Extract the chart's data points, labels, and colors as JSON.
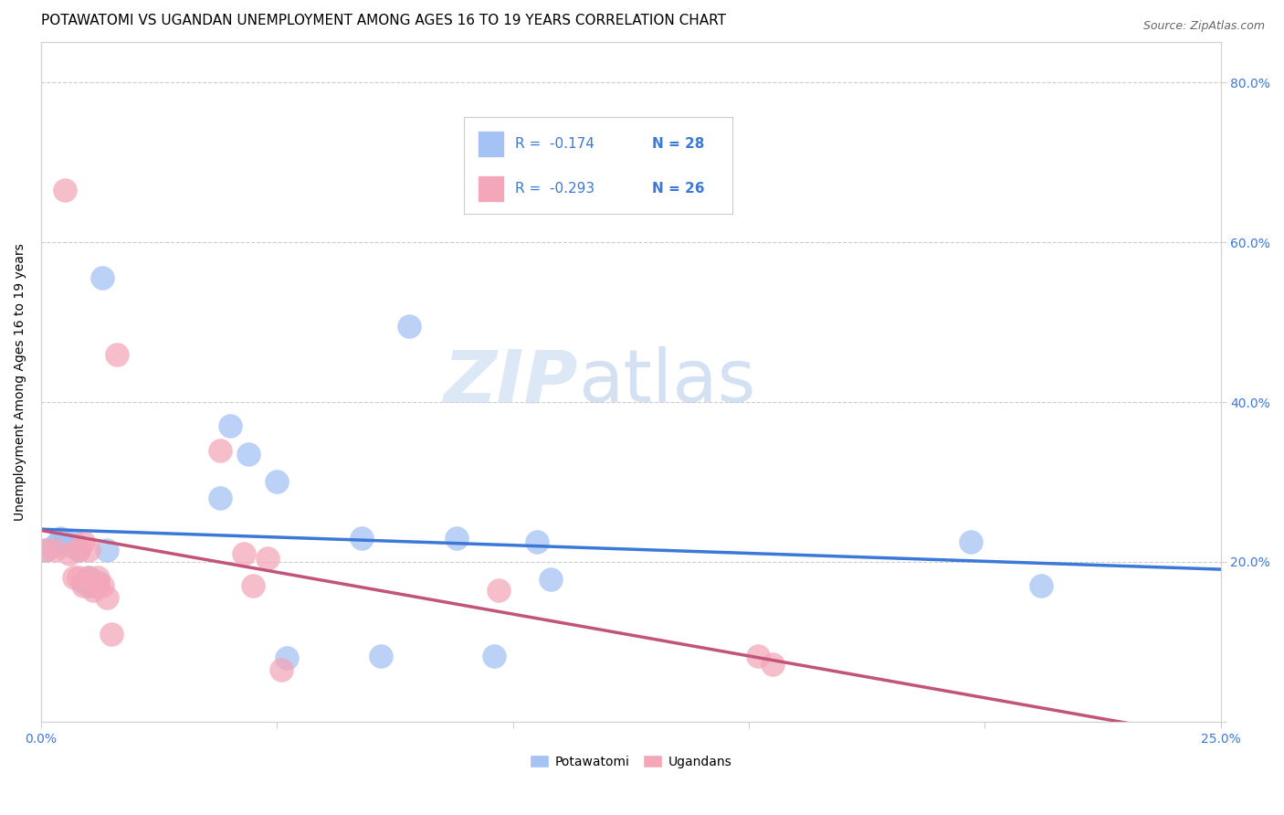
{
  "title": "POTAWATOMI VS UGANDAN UNEMPLOYMENT AMONG AGES 16 TO 19 YEARS CORRELATION CHART",
  "source": "Source: ZipAtlas.com",
  "ylabel": "Unemployment Among Ages 16 to 19 years",
  "xlim": [
    0.0,
    0.25
  ],
  "ylim": [
    0.0,
    0.85
  ],
  "x_ticks": [
    0.0,
    0.05,
    0.1,
    0.15,
    0.2,
    0.25
  ],
  "y_ticks": [
    0.0,
    0.2,
    0.4,
    0.6,
    0.8
  ],
  "y_tick_labels_right": [
    "",
    "20.0%",
    "40.0%",
    "60.0%",
    "80.0%"
  ],
  "potawatomi_color": "#a4c2f4",
  "ugandan_color": "#f4a7b9",
  "potawatomi_line_color": "#3c78d8",
  "ugandan_line_color": "#c2547a",
  "legend_r_potawatomi": "R =  -0.174",
  "legend_n_potawatomi": "N = 28",
  "legend_r_ugandan": "R =  -0.293",
  "legend_n_ugandan": "N = 26",
  "potawatomi_x": [
    0.001,
    0.003,
    0.004,
    0.005,
    0.006,
    0.007,
    0.008,
    0.009,
    0.01,
    0.01,
    0.011,
    0.012,
    0.013,
    0.014,
    0.038,
    0.04,
    0.044,
    0.05,
    0.052,
    0.068,
    0.072,
    0.078,
    0.088,
    0.096,
    0.105,
    0.108,
    0.197,
    0.212
  ],
  "potawatomi_y": [
    0.215,
    0.22,
    0.23,
    0.225,
    0.22,
    0.225,
    0.215,
    0.175,
    0.17,
    0.18,
    0.17,
    0.175,
    0.555,
    0.215,
    0.28,
    0.37,
    0.335,
    0.3,
    0.08,
    0.23,
    0.082,
    0.495,
    0.23,
    0.082,
    0.225,
    0.178,
    0.225,
    0.17
  ],
  "ugandan_x": [
    0.001,
    0.003,
    0.005,
    0.006,
    0.007,
    0.008,
    0.008,
    0.009,
    0.009,
    0.01,
    0.01,
    0.011,
    0.012,
    0.012,
    0.013,
    0.014,
    0.015,
    0.016,
    0.038,
    0.043,
    0.045,
    0.048,
    0.051,
    0.097,
    0.152,
    0.155
  ],
  "ugandan_y": [
    0.215,
    0.215,
    0.665,
    0.21,
    0.18,
    0.215,
    0.18,
    0.225,
    0.17,
    0.215,
    0.18,
    0.165,
    0.18,
    0.17,
    0.17,
    0.155,
    0.11,
    0.46,
    0.34,
    0.21,
    0.17,
    0.205,
    0.065,
    0.165,
    0.082,
    0.072
  ],
  "background_color": "#ffffff",
  "watermark_zip": "ZIP",
  "watermark_atlas": "atlas",
  "title_fontsize": 11,
  "axis_label_fontsize": 10,
  "tick_fontsize": 10,
  "legend_fontsize": 11
}
